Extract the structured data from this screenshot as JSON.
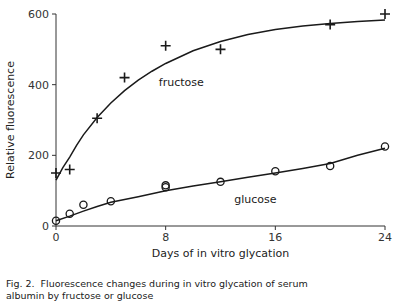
{
  "chart_data": {
    "type": "scatter",
    "x_label": "Days of in vitro glycation",
    "y_label": "Relative fluorescence",
    "caption": "Fig. 2.  Fluorescence changes during in vitro glycation of serum\nalbumin by fructose or glucose",
    "xlim": [
      0,
      24
    ],
    "ylim": [
      0,
      600
    ],
    "xticks": [
      0,
      8,
      16,
      24
    ],
    "yticks": [
      0,
      200,
      400,
      600
    ],
    "grid": false,
    "series": [
      {
        "type": "line",
        "line_style": "solid",
        "color": "#1a1a1a",
        "x": [
          0,
          0.5,
          1,
          1.5,
          2,
          3,
          4,
          5,
          6,
          7,
          8,
          10,
          12,
          14,
          16,
          18,
          20,
          22,
          24
        ],
        "values": [
          130,
          165,
          195,
          228,
          258,
          307,
          348,
          383,
          413,
          438,
          460,
          496,
          522,
          542,
          556,
          566,
          573,
          579,
          583
        ]
      },
      {
        "type": "line",
        "line_style": "solid",
        "color": "#1a1a1a",
        "x": [
          0,
          1,
          2,
          3,
          4,
          6,
          8,
          10,
          12,
          14,
          16,
          18,
          20,
          22,
          24
        ],
        "values": [
          15,
          28,
          42,
          55,
          67,
          83,
          100,
          113,
          125,
          138,
          150,
          163,
          177,
          200,
          220
        ]
      },
      {
        "type": "scatter",
        "marker": "plus",
        "color": "#1a1a1a",
        "x": [
          0,
          1,
          3,
          5,
          8,
          12,
          20,
          24
        ],
        "values": [
          150,
          160,
          305,
          420,
          510,
          500,
          570,
          600
        ]
      },
      {
        "type": "scatter",
        "marker": "circle",
        "color": "#1a1a1a",
        "x": [
          0,
          1,
          2,
          4,
          8,
          8,
          12,
          16,
          20,
          24
        ],
        "values": [
          15,
          35,
          60,
          70,
          110,
          115,
          125,
          155,
          170,
          225
        ]
      }
    ],
    "annotations": [
      {
        "text": "fructose",
        "x": 7.5,
        "y": 395
      },
      {
        "text": "glucose",
        "x": 13.0,
        "y": 65
      }
    ]
  }
}
